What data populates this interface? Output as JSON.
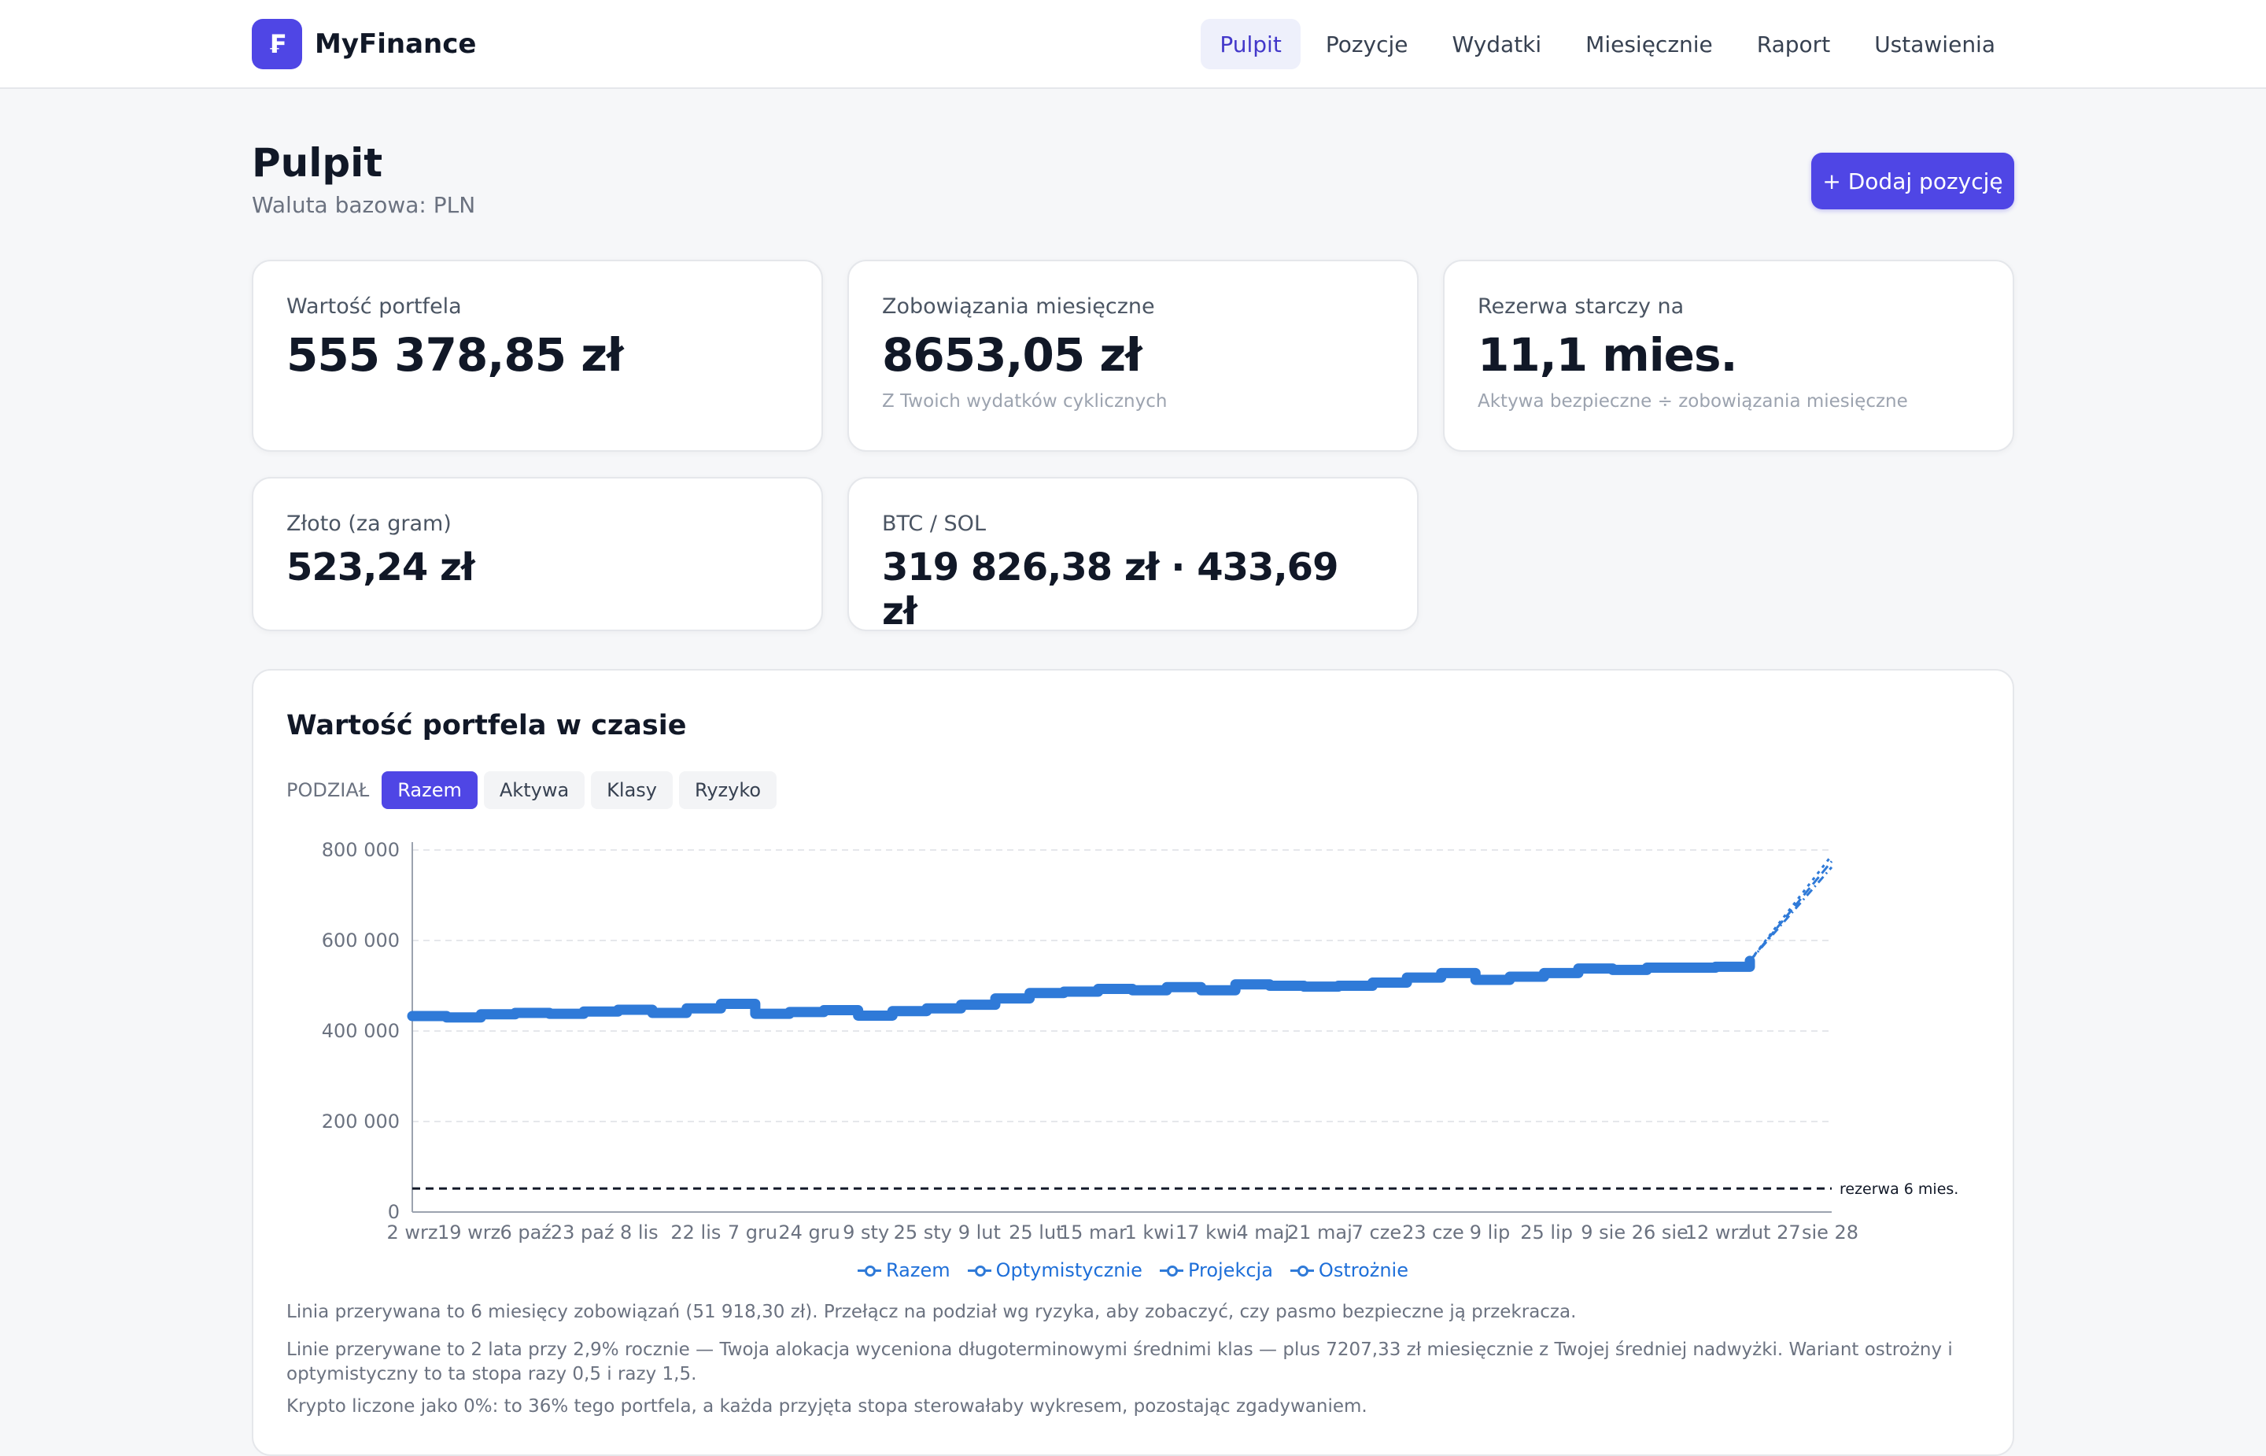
{
  "app": {
    "name": "MyFinance",
    "logo_glyph": "₣"
  },
  "nav": [
    {
      "label": "Pulpit",
      "active": true
    },
    {
      "label": "Pozycje"
    },
    {
      "label": "Wydatki"
    },
    {
      "label": "Miesięcznie"
    },
    {
      "label": "Raport"
    },
    {
      "label": "Ustawienia"
    }
  ],
  "page": {
    "title": "Pulpit",
    "subtitle": "Waluta bazowa: PLN",
    "add_button": "+ Dodaj pozycję"
  },
  "cards": {
    "portfolio": {
      "label": "Wartość portfela",
      "value": "555 378,85 zł"
    },
    "obligations": {
      "label": "Zobowiązania miesięczne",
      "value": "8653,05 zł",
      "hint": "Z Twoich wydatków cyklicznych"
    },
    "reserve": {
      "label": "Rezerwa starczy na",
      "value": "11,1 mies.",
      "hint": "Aktywa bezpieczne ÷ zobowiązania miesięczne"
    },
    "gold": {
      "label": "Złoto (za gram)",
      "value": "523,24 zł"
    },
    "crypto": {
      "label": "BTC / SOL",
      "value": "319 826,38 zł · 433,69 zł"
    }
  },
  "chart": {
    "title": "Wartość portfela w czasie",
    "split_label": "PODZIAŁ",
    "split_options": [
      "Razem",
      "Aktywa",
      "Klasy",
      "Ryzyko"
    ],
    "active_split": "Razem",
    "legend": [
      "Razem",
      "Optymistycznie",
      "Projekcja",
      "Ostrożnie"
    ],
    "notes": [
      "Linia przerywana to 6 miesięcy zobowiązań (51 918,30 zł). Przełącz na podział wg ryzyka, aby zobaczyć, czy pasmo bezpieczne ją przekracza.",
      "Linie przerywane to 2 lata przy 2,9% rocznie — Twoja alokacja wyceniona długoterminowymi średnimi klas — plus 7207,33 zł miesięcznie z Twojej średniej nadwyżki. Wariant ostrożny i optymistyczny to ta stopa razy 0,5 i razy 1,5.",
      "Krypto liczone jako 0%: to 36% tego portfela, a każda przyjęta stopa sterowałaby wykresem, pozostając zgadywaniem."
    ]
  },
  "chart_data": {
    "type": "line",
    "ylim": [
      0,
      800000
    ],
    "y_ticks": [
      "0",
      "200 000",
      "400 000",
      "600 000",
      "800 000"
    ],
    "x_tick_labels": [
      "2 wrz",
      "19 wrz",
      "6 paź",
      "23 paź",
      "8 lis",
      "22 lis",
      "7 gru",
      "24 gru",
      "9 sty",
      "25 sty",
      "9 lut",
      "25 lut",
      "15 mar",
      "1 kwi",
      "17 kwi",
      "4 maj",
      "21 maj",
      "7 cze",
      "23 cze",
      "9 lip",
      "25 lip",
      "9 sie",
      "26 sie",
      "12 wrz",
      "lut 27",
      "sie 28"
    ],
    "series": [
      {
        "name": "Razem",
        "color": "#2f7ad8",
        "values": [
          433000,
          430000,
          437000,
          440000,
          438000,
          443000,
          447000,
          440000,
          450000,
          460000,
          438000,
          442000,
          446000,
          434000,
          444000,
          450000,
          458000,
          472000,
          484000,
          487000,
          493000,
          490000,
          497000,
          490000,
          503000,
          500000,
          498000,
          500000,
          507000,
          518000,
          528000,
          513000,
          520000,
          528000,
          538000,
          535000,
          540000,
          540000,
          542000,
          555000
        ]
      },
      {
        "name": "Optymistycznie",
        "color": "#2f7ad8",
        "values": [
          555000,
          788000
        ]
      },
      {
        "name": "Projekcja",
        "color": "#2f7ad8",
        "values": [
          555000,
          775000
        ]
      },
      {
        "name": "Ostrożnie",
        "color": "#2f7ad8",
        "values": [
          555000,
          762000
        ]
      }
    ],
    "reference_line": {
      "label": "rezerwa 6 mies.",
      "value": 51918.3
    },
    "grid": true,
    "legend_position": "bottom"
  }
}
